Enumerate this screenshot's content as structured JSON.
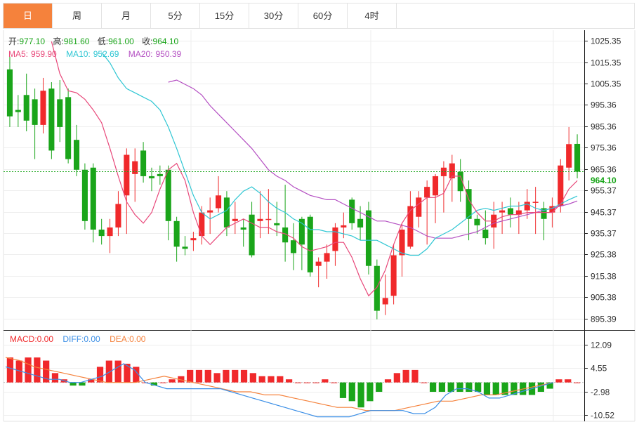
{
  "tabs": [
    {
      "label": "日",
      "active": true
    },
    {
      "label": "周"
    },
    {
      "label": "月"
    },
    {
      "label": "5分"
    },
    {
      "label": "15分"
    },
    {
      "label": "30分"
    },
    {
      "label": "60分"
    },
    {
      "label": "4时"
    }
  ],
  "info": {
    "open_label": "开:",
    "open": "977.10",
    "high_label": "高:",
    "high": "981.60",
    "low_label": "低:",
    "low": "961.00",
    "close_label": "收:",
    "close": "964.10",
    "ma5_label": "MA5:",
    "ma5": "959.90",
    "ma10_label": "MA10:",
    "ma10": "952.69",
    "ma20_label": "MA20:",
    "ma20": "950.39",
    "macd_label": "MACD:",
    "macd": "0.00",
    "diff_label": "DIFF:",
    "diff": "0.00",
    "dea_label": "DEA:",
    "dea": "0.00",
    "current_price": "964.10"
  },
  "colors": {
    "up": "#f0292b",
    "down": "#1aa51a",
    "ma5": "#e8487a",
    "ma10": "#2ec6d3",
    "ma20": "#b44fc2",
    "diff": "#3a8ee6",
    "dea": "#f5823c",
    "tab_active": "#f5823c",
    "price_tag": "#1aa51a"
  },
  "chart_data": [
    {
      "type": "candlestick",
      "y_ticks": [
        1025.35,
        1015.35,
        1005.35,
        995.36,
        985.36,
        975.36,
        965.36,
        955.37,
        945.37,
        935.37,
        925.38,
        915.38,
        905.38,
        895.39
      ],
      "ylim": [
        890,
        1030
      ],
      "current_price": 964.1,
      "candles": [
        [
          1012,
          990,
          1018,
          985
        ],
        [
          993,
          992,
          1000,
          985
        ],
        [
          1000,
          988,
          1010,
          983
        ],
        [
          998,
          986,
          1003,
          970
        ],
        [
          986,
          1002,
          1008,
          982
        ],
        [
          1003,
          974,
          1006,
          970
        ],
        [
          998,
          985,
          1007,
          978
        ],
        [
          999,
          970,
          1003,
          968
        ],
        [
          979,
          965,
          986,
          962
        ],
        [
          965,
          941,
          968,
          937
        ],
        [
          966,
          937,
          968,
          931
        ],
        [
          937,
          934,
          942,
          930
        ],
        [
          934,
          938,
          942,
          926
        ],
        [
          938,
          949,
          955,
          934
        ],
        [
          953,
          972,
          975,
          935
        ],
        [
          963,
          969,
          975,
          950
        ],
        [
          974,
          962,
          978,
          959
        ],
        [
          962,
          961,
          966,
          955
        ],
        [
          963,
          962,
          967,
          958
        ],
        [
          965,
          941,
          967,
          932
        ],
        [
          941,
          929,
          943,
          922
        ],
        [
          929,
          928,
          934,
          925
        ],
        [
          932,
          933,
          936,
          927
        ],
        [
          934,
          945,
          948,
          930
        ],
        [
          945,
          946,
          952,
          935
        ],
        [
          947,
          953,
          962,
          945
        ],
        [
          952,
          938,
          955,
          934
        ],
        [
          941,
          942,
          950,
          935
        ],
        [
          938,
          937,
          942,
          929
        ],
        [
          944,
          925,
          950,
          924
        ],
        [
          941,
          942,
          955,
          933
        ],
        [
          942,
          942,
          956,
          935
        ],
        [
          940,
          939,
          950,
          934
        ],
        [
          938,
          931,
          958,
          922
        ],
        [
          932,
          926,
          940,
          918
        ],
        [
          942,
          930,
          943,
          918
        ],
        [
          943,
          917,
          944,
          915
        ],
        [
          920,
          922,
          924,
          910
        ],
        [
          922,
          926,
          930,
          914
        ],
        [
          927,
          938,
          940,
          920
        ],
        [
          938,
          939,
          945,
          933
        ],
        [
          951,
          940,
          952,
          937
        ],
        [
          942,
          938,
          948,
          932
        ],
        [
          946,
          920,
          950,
          916
        ],
        [
          920,
          899,
          923,
          895
        ],
        [
          902,
          905,
          916,
          897
        ],
        [
          906,
          925,
          930,
          902
        ],
        [
          925,
          937,
          940,
          915
        ],
        [
          929,
          948,
          955,
          928
        ],
        [
          943,
          952,
          955,
          938
        ],
        [
          952,
          957,
          960,
          930
        ],
        [
          953,
          962,
          963,
          940
        ],
        [
          962,
          966,
          969,
          945
        ],
        [
          961,
          968,
          972,
          950
        ],
        [
          964,
          955,
          970,
          950
        ],
        [
          956,
          942,
          960,
          932
        ],
        [
          942,
          939,
          944,
          935
        ],
        [
          937,
          933,
          946,
          930
        ],
        [
          938,
          944,
          950,
          928
        ],
        [
          945,
          946,
          950,
          935
        ],
        [
          947,
          944,
          952,
          938
        ],
        [
          944,
          946,
          950,
          935
        ],
        [
          946,
          950,
          956,
          942
        ],
        [
          950,
          950,
          957,
          935
        ],
        [
          947,
          942,
          950,
          932
        ],
        [
          945,
          948,
          952,
          938
        ],
        [
          948,
          967,
          970,
          945
        ],
        [
          966,
          977,
          985,
          960
        ],
        [
          977.1,
          964.1,
          981.6,
          961.0
        ]
      ],
      "ma5": [
        1025,
        1010,
        1002,
        1001,
        998,
        993,
        987,
        975,
        962,
        950,
        944,
        940,
        945,
        956,
        965,
        968,
        960,
        945,
        934,
        930,
        934,
        938,
        940,
        942,
        940,
        938,
        938,
        936,
        935,
        933,
        929,
        927,
        928,
        929,
        931,
        931,
        924,
        914,
        906,
        910,
        918,
        930,
        940,
        946,
        949,
        952,
        952,
        954,
        962,
        962,
        951,
        945,
        941,
        941,
        943,
        944,
        944,
        945,
        945,
        945,
        945,
        949,
        956,
        959.9
      ],
      "ma10": [
        1020,
        1015,
        1008,
        1003,
        1001,
        999,
        997,
        993,
        985,
        975,
        964,
        953,
        945,
        942,
        944,
        946,
        951,
        955,
        957,
        954,
        950,
        947,
        945,
        942,
        940,
        937,
        937,
        936,
        936,
        935,
        934,
        932,
        932,
        932,
        930,
        928,
        926,
        925,
        925,
        928,
        933,
        935,
        937,
        940,
        943,
        946,
        947,
        946,
        947,
        948,
        948,
        949,
        947,
        946,
        947,
        949,
        951,
        952.69
      ],
      "ma20": [
        1006,
        1007,
        1005,
        1003,
        1000,
        995,
        991,
        987,
        983,
        979,
        975,
        970,
        965,
        962,
        960,
        957,
        955,
        953,
        952,
        951,
        951,
        949,
        947,
        945,
        943,
        941,
        941,
        940,
        939,
        938,
        936,
        934,
        933,
        933,
        933,
        934,
        935,
        936,
        938,
        940,
        941,
        942,
        943,
        944,
        945,
        946,
        947,
        948,
        949,
        950.39
      ]
    },
    {
      "type": "macd",
      "y_ticks": [
        12.09,
        4.55,
        -2.98,
        -10.52
      ],
      "ylim": [
        -12,
        15
      ],
      "histogram": [
        8,
        7,
        8,
        8,
        7,
        3,
        1,
        -1,
        -1,
        1,
        5,
        7,
        7,
        6,
        5,
        0,
        -1,
        0,
        1,
        2,
        4,
        4,
        4,
        3,
        4,
        4,
        4,
        3,
        2,
        2,
        2,
        1,
        0,
        0,
        0,
        1,
        0,
        -5,
        -6,
        -8,
        -6,
        -3,
        1,
        3,
        4,
        4,
        0,
        -3,
        -3,
        -3,
        -3,
        -3,
        -3,
        -4,
        -4,
        -4,
        -4,
        -4,
        -4,
        -3,
        -2,
        1,
        1,
        0
      ],
      "diff": [
        5,
        4,
        3,
        2,
        1,
        1,
        0,
        0,
        1,
        2,
        4,
        6,
        4,
        0,
        -1,
        -2,
        -2,
        -2,
        -2,
        -2,
        -2,
        -3,
        -4,
        -5,
        -6,
        -7,
        -8,
        -9,
        -10,
        -11,
        -11,
        -11,
        -11,
        -10,
        -9,
        -9,
        -9,
        -9,
        -10,
        -10,
        -8,
        -4,
        -2,
        -2,
        -3,
        -5,
        -5,
        -4,
        -3,
        -2,
        -1,
        0.0
      ],
      "dea": [
        8,
        7,
        5,
        4,
        3,
        2,
        1,
        0,
        0,
        0,
        1,
        2,
        1,
        0,
        -1,
        -2,
        -3,
        -3,
        -4,
        -4,
        -5,
        -6,
        -7,
        -8,
        -8,
        -9,
        -9,
        -9,
        -8,
        -7,
        -6,
        -6,
        -5,
        -4,
        -4,
        -3,
        -2,
        -1,
        0.0
      ]
    }
  ]
}
